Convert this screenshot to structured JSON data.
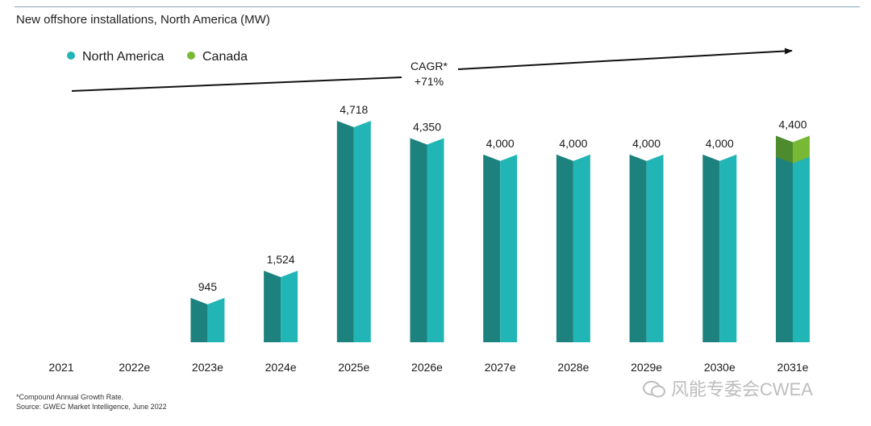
{
  "title": "New offshore installations, North America (MW)",
  "footnote": {
    "line1": "*Compound Annual Growth Rate.",
    "line2": "Source: GWEC Market Intelligence, June 2022"
  },
  "watermark": "风能专委会CWEA",
  "colors": {
    "north_america_light": "#22b5b5",
    "north_america_dark": "#1d827e",
    "canada_light": "#78b834",
    "canada_dark": "#4e8a2e",
    "legend_na": "#22b5b5",
    "legend_canada": "#78b834"
  },
  "chart_data": {
    "type": "bar",
    "stacked": true,
    "title": "New offshore installations, North America (MW)",
    "categories": [
      "2021",
      "2022e",
      "2023e",
      "2024e",
      "2025e",
      "2026e",
      "2027e",
      "2028e",
      "2029e",
      "2030e",
      "2031e"
    ],
    "series": [
      {
        "name": "North America",
        "values": [
          0,
          0,
          945,
          1524,
          4718,
          4350,
          4000,
          4000,
          4000,
          4000,
          3950
        ]
      },
      {
        "name": "Canada",
        "values": [
          0,
          0,
          0,
          0,
          0,
          0,
          0,
          0,
          0,
          0,
          450
        ]
      }
    ],
    "totals": [
      null,
      null,
      945,
      1524,
      4718,
      4350,
      4000,
      4000,
      4000,
      4000,
      4400
    ],
    "data_labels": [
      "",
      "",
      "945",
      "1,524",
      "4,718",
      "4,350",
      "4,000",
      "4,000",
      "4,000",
      "4,000",
      "4,400"
    ],
    "legend": [
      "North America",
      "Canada"
    ],
    "legend_position": "top-left",
    "annotation": {
      "line1": "CAGR*",
      "line2": "+71%"
    },
    "ylim": [
      0,
      4718
    ],
    "grid": false,
    "xlabel": "",
    "ylabel": ""
  }
}
